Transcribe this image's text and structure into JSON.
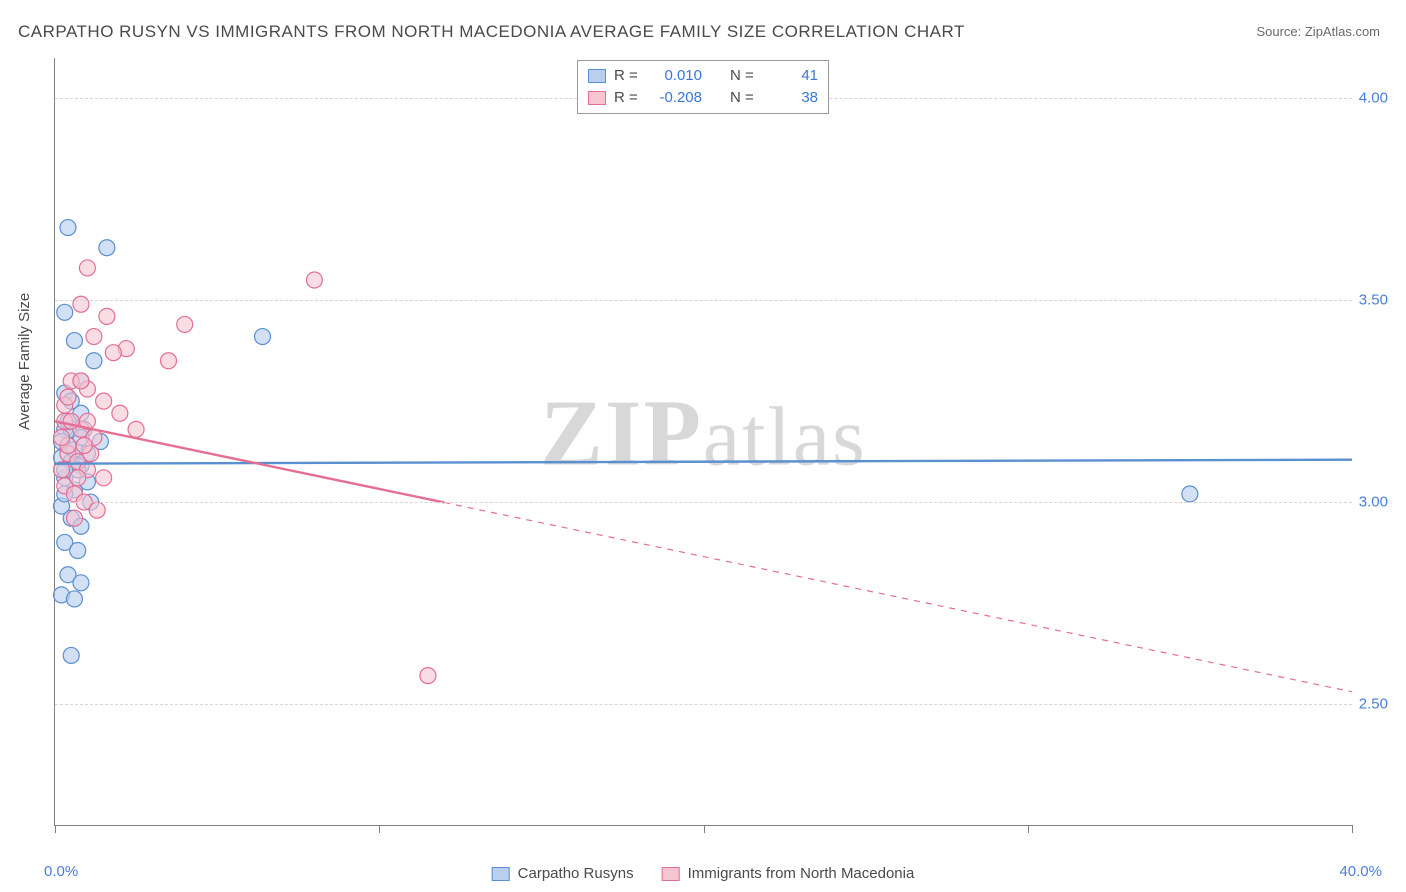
{
  "title": "CARPATHO RUSYN VS IMMIGRANTS FROM NORTH MACEDONIA AVERAGE FAMILY SIZE CORRELATION CHART",
  "source": "Source: ZipAtlas.com",
  "watermark_bold": "ZIP",
  "watermark_rest": "atlas",
  "ylabel": "Average Family Size",
  "chart": {
    "type": "scatter",
    "xlim": [
      0.0,
      40.0
    ],
    "ylim_visible": [
      2.2,
      4.1
    ],
    "yticks": [
      2.5,
      3.0,
      3.5,
      4.0
    ],
    "ytick_labels": [
      "2.50",
      "3.00",
      "3.50",
      "4.00"
    ],
    "xtick_positions": [
      0,
      10,
      20,
      30,
      40
    ],
    "xmin_label": "0.0%",
    "xmax_label": "40.0%",
    "background_color": "#ffffff",
    "grid_color": "#d5d5d5",
    "axis_color": "#808080",
    "marker_radius": 8,
    "marker_stroke_width": 1.2,
    "trend_line_width": 2.4,
    "series": [
      {
        "name": "Carpatho Rusyns",
        "fill": "#b8d0ee",
        "stroke": "#5a8fd0",
        "fill_opacity": 0.65,
        "r_value": "0.010",
        "n_value": "41",
        "trend": {
          "y_at_xmin": 3.095,
          "y_at_xmax": 3.105,
          "solid_until_x": 40.0
        },
        "points": [
          [
            0.4,
            3.68
          ],
          [
            1.6,
            3.63
          ],
          [
            0.3,
            3.47
          ],
          [
            6.4,
            3.41
          ],
          [
            0.8,
            3.3
          ],
          [
            0.3,
            3.27
          ],
          [
            0.3,
            3.18
          ],
          [
            0.5,
            3.18
          ],
          [
            0.8,
            3.22
          ],
          [
            1.4,
            3.15
          ],
          [
            0.2,
            3.11
          ],
          [
            0.5,
            3.1
          ],
          [
            0.8,
            3.09
          ],
          [
            0.3,
            3.06
          ],
          [
            0.6,
            3.03
          ],
          [
            1.0,
            3.05
          ],
          [
            0.2,
            2.99
          ],
          [
            0.5,
            2.96
          ],
          [
            0.8,
            2.94
          ],
          [
            0.3,
            2.9
          ],
          [
            0.4,
            2.82
          ],
          [
            0.8,
            2.8
          ],
          [
            0.2,
            2.77
          ],
          [
            0.6,
            2.76
          ],
          [
            0.5,
            2.62
          ],
          [
            35.0,
            3.02
          ],
          [
            1.2,
            3.35
          ],
          [
            0.6,
            3.4
          ],
          [
            1.0,
            3.12
          ],
          [
            0.4,
            3.14
          ],
          [
            0.7,
            3.08
          ],
          [
            0.3,
            3.02
          ],
          [
            0.9,
            3.18
          ],
          [
            0.5,
            3.25
          ],
          [
            0.2,
            3.15
          ],
          [
            0.7,
            2.88
          ],
          [
            1.1,
            3.0
          ],
          [
            0.4,
            3.2
          ],
          [
            0.6,
            3.13
          ],
          [
            0.3,
            3.08
          ],
          [
            0.8,
            3.16
          ]
        ]
      },
      {
        "name": "Immigrants from North Macedonia",
        "fill": "#f5c5d2",
        "stroke": "#e46f93",
        "fill_opacity": 0.6,
        "r_value": "-0.208",
        "n_value": "38",
        "trend": {
          "y_at_xmin": 3.2,
          "y_at_xmax": 2.53,
          "solid_until_x": 12.0
        },
        "points": [
          [
            1.0,
            3.58
          ],
          [
            8.0,
            3.55
          ],
          [
            0.8,
            3.49
          ],
          [
            1.6,
            3.46
          ],
          [
            4.0,
            3.44
          ],
          [
            1.2,
            3.41
          ],
          [
            2.2,
            3.38
          ],
          [
            1.8,
            3.37
          ],
          [
            3.5,
            3.35
          ],
          [
            0.5,
            3.3
          ],
          [
            1.0,
            3.28
          ],
          [
            1.5,
            3.25
          ],
          [
            2.0,
            3.22
          ],
          [
            0.3,
            3.2
          ],
          [
            0.8,
            3.18
          ],
          [
            1.2,
            3.16
          ],
          [
            2.5,
            3.18
          ],
          [
            0.4,
            3.12
          ],
          [
            0.7,
            3.1
          ],
          [
            1.0,
            3.08
          ],
          [
            1.5,
            3.06
          ],
          [
            0.3,
            3.04
          ],
          [
            0.6,
            3.02
          ],
          [
            0.9,
            3.0
          ],
          [
            1.3,
            2.98
          ],
          [
            0.4,
            3.14
          ],
          [
            0.2,
            3.16
          ],
          [
            0.7,
            3.06
          ],
          [
            1.1,
            3.12
          ],
          [
            0.5,
            3.2
          ],
          [
            0.3,
            3.24
          ],
          [
            0.8,
            3.3
          ],
          [
            0.2,
            3.08
          ],
          [
            0.6,
            2.96
          ],
          [
            1.0,
            3.2
          ],
          [
            0.4,
            3.26
          ],
          [
            0.9,
            3.14
          ],
          [
            11.5,
            2.57
          ]
        ]
      }
    ],
    "legend_top": {
      "r_label": "R =",
      "n_label": "N ="
    }
  }
}
